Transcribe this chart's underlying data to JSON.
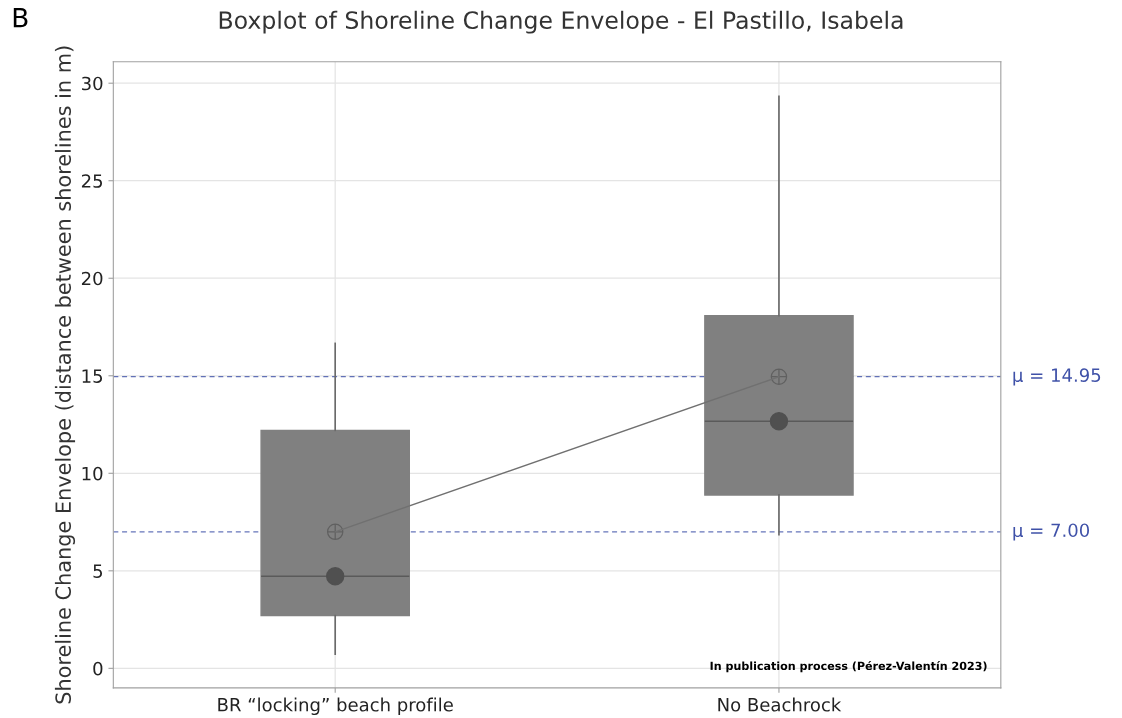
{
  "chart_data": {
    "type": "box",
    "title": "Boxplot of Shoreline Change Envelope - El Pastillo, Isabela",
    "ylabel": "Shoreline Change Envelope (distance between shorelines in m)",
    "categories": [
      "BR “locking” beach profile",
      "No Beachrock"
    ],
    "boxes": [
      {
        "low": 0.73,
        "q1": 2.7,
        "median": 4.72,
        "q3": 12.2,
        "high": 16.66,
        "mean": 7.0
      },
      {
        "low": 6.85,
        "q1": 8.89,
        "median": 12.67,
        "q3": 18.08,
        "high": 29.33,
        "mean": 14.95
      }
    ],
    "color": "#808080",
    "series": [
      {
        "type": "line",
        "color": "#707070",
        "values": [
          7.0,
          14.95
        ],
        "marker": "none"
      },
      {
        "type": "scatter",
        "color": "#505050",
        "values": [
          4.72,
          12.67
        ],
        "marker": "circle"
      }
    ],
    "ylim": [
      -1,
      31.1
    ],
    "yticks": [
      0,
      5,
      10,
      15,
      20,
      25,
      30
    ],
    "ref_lines": [
      {
        "axis": "y",
        "value": 14.95,
        "label": "μ = 14.95",
        "color": "#3f51a8",
        "line_style": "dashed"
      },
      {
        "axis": "y",
        "value": 7.0,
        "label": "μ = 7.00",
        "color": "#3f51a8",
        "line_style": "dashed"
      }
    ],
    "grid": true,
    "annotations": [
      "B",
      "In publication process (Pérez-Valentín 2023)"
    ]
  }
}
